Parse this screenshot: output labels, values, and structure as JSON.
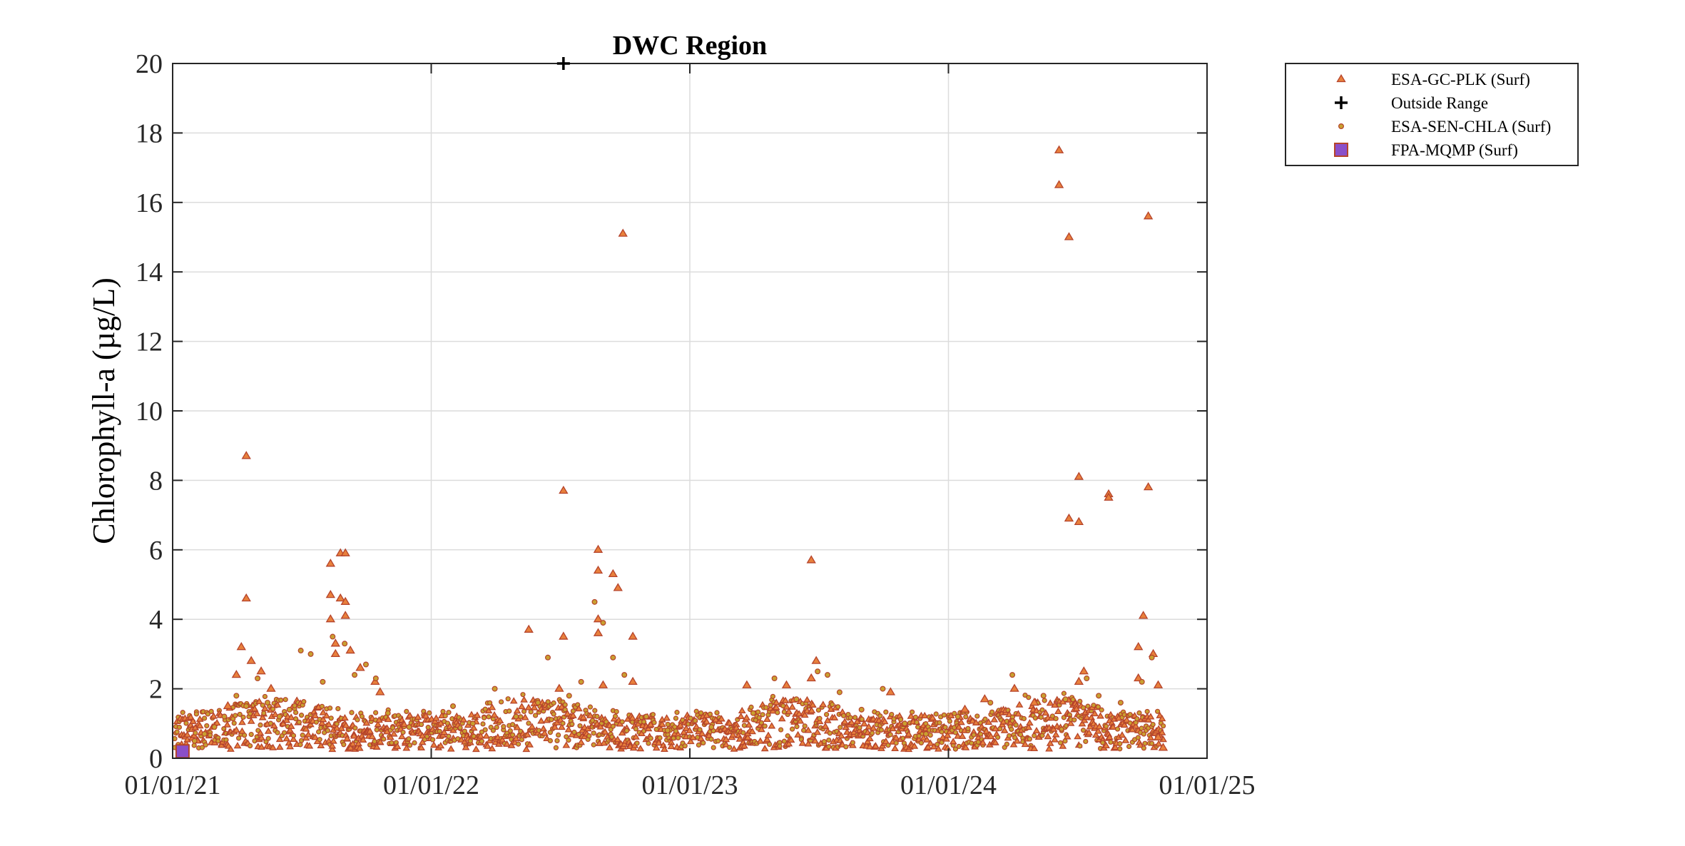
{
  "chart_data": {
    "type": "scatter",
    "title": "DWC Region",
    "xlabel": "",
    "ylabel": "Chlorophyll-a (µg/L)",
    "x_ticks": [
      "01/01/21",
      "01/01/22",
      "01/01/23",
      "01/01/24",
      "01/01/25"
    ],
    "xlim": [
      "2021-01-01",
      "2025-01-01"
    ],
    "ylim": [
      0,
      20
    ],
    "y_ticks": [
      0,
      2,
      4,
      6,
      8,
      10,
      12,
      14,
      16,
      18,
      20
    ],
    "grid": true,
    "legend_position": "outside-top-right",
    "colors": {
      "triangle_fill": "#e8803c",
      "triangle_edge": "#b5432b",
      "circle_fill": "#c9a030",
      "circle_edge": "#b5432b",
      "square_fill": "#8a4fc9",
      "square_edge": "#b5432b",
      "plus": "#000000"
    },
    "series": [
      {
        "name": "ESA-GC-PLK (Surf)",
        "marker": "triangle",
        "points": [
          [
            "2021-04-15",
            8.7
          ],
          [
            "2021-04-15",
            4.6
          ],
          [
            "2021-04-08",
            3.2
          ],
          [
            "2021-04-01",
            2.4
          ],
          [
            "2021-04-22",
            2.8
          ],
          [
            "2021-05-06",
            2.5
          ],
          [
            "2021-03-20",
            1.5
          ],
          [
            "2021-05-20",
            2.0
          ],
          [
            "2021-08-12",
            5.6
          ],
          [
            "2021-08-12",
            4.7
          ],
          [
            "2021-08-12",
            4.0
          ],
          [
            "2021-08-26",
            5.9
          ],
          [
            "2021-09-02",
            5.9
          ],
          [
            "2021-08-26",
            4.6
          ],
          [
            "2021-09-02",
            4.5
          ],
          [
            "2021-09-02",
            4.1
          ],
          [
            "2021-08-19",
            3.3
          ],
          [
            "2021-08-19",
            3.0
          ],
          [
            "2021-09-09",
            3.1
          ],
          [
            "2021-09-23",
            2.6
          ],
          [
            "2021-10-14",
            2.2
          ],
          [
            "2021-10-21",
            1.9
          ],
          [
            "2022-05-19",
            3.7
          ],
          [
            "2022-07-07",
            7.7
          ],
          [
            "2022-07-07",
            3.5
          ],
          [
            "2022-07-01",
            2.0
          ],
          [
            "2022-08-25",
            6.0
          ],
          [
            "2022-08-25",
            5.4
          ],
          [
            "2022-08-25",
            4.0
          ],
          [
            "2022-08-25",
            3.6
          ],
          [
            "2022-09-15",
            5.3
          ],
          [
            "2022-09-22",
            4.9
          ],
          [
            "2022-09-29",
            15.1
          ],
          [
            "2022-10-13",
            3.5
          ],
          [
            "2022-10-13",
            2.2
          ],
          [
            "2022-09-01",
            2.1
          ],
          [
            "2023-03-23",
            2.1
          ],
          [
            "2023-05-18",
            2.1
          ],
          [
            "2023-06-22",
            5.7
          ],
          [
            "2023-06-29",
            2.8
          ],
          [
            "2023-06-22",
            2.3
          ],
          [
            "2023-10-12",
            1.9
          ],
          [
            "2024-01-25",
            1.4
          ],
          [
            "2024-02-22",
            1.7
          ],
          [
            "2024-04-04",
            2.0
          ],
          [
            "2024-05-02",
            1.6
          ],
          [
            "2024-06-06",
            17.5
          ],
          [
            "2024-06-06",
            16.5
          ],
          [
            "2024-06-20",
            15.0
          ],
          [
            "2024-06-20",
            6.9
          ],
          [
            "2024-07-04",
            8.1
          ],
          [
            "2024-07-04",
            6.8
          ],
          [
            "2024-07-11",
            2.5
          ],
          [
            "2024-07-04",
            2.2
          ],
          [
            "2024-08-15",
            7.6
          ],
          [
            "2024-08-15",
            7.5
          ],
          [
            "2024-09-26",
            3.2
          ],
          [
            "2024-09-26",
            2.3
          ],
          [
            "2024-10-10",
            15.6
          ],
          [
            "2024-10-10",
            7.8
          ],
          [
            "2024-10-03",
            4.1
          ],
          [
            "2024-10-17",
            3.0
          ],
          [
            "2024-10-24",
            2.1
          ],
          [
            "2024-10-31",
            0.3
          ],
          [
            "2024-10-24",
            0.6
          ]
        ]
      },
      {
        "name": "Outside Range",
        "marker": "plus",
        "points": [
          [
            "2022-07-07",
            20
          ]
        ]
      },
      {
        "name": "ESA-SEN-CHLA (Surf)",
        "marker": "circle",
        "points": [
          [
            "2021-02-01",
            0.5
          ],
          [
            "2021-02-15",
            0.7
          ],
          [
            "2021-03-01",
            0.9
          ],
          [
            "2021-03-15",
            1.2
          ],
          [
            "2021-04-01",
            1.8
          ],
          [
            "2021-04-15",
            1.5
          ],
          [
            "2021-05-01",
            2.3
          ],
          [
            "2021-05-15",
            1.6
          ],
          [
            "2021-06-01",
            1.2
          ],
          [
            "2021-06-15",
            1.4
          ],
          [
            "2021-07-01",
            3.1
          ],
          [
            "2021-07-15",
            3.0
          ],
          [
            "2021-08-01",
            2.2
          ],
          [
            "2021-08-15",
            3.5
          ],
          [
            "2021-09-01",
            3.3
          ],
          [
            "2021-09-15",
            2.4
          ],
          [
            "2021-10-01",
            2.7
          ],
          [
            "2021-10-15",
            2.3
          ],
          [
            "2021-11-01",
            1.3
          ],
          [
            "2021-12-01",
            0.9
          ],
          [
            "2022-02-01",
            1.5
          ],
          [
            "2022-03-01",
            1.0
          ],
          [
            "2022-04-01",
            2.0
          ],
          [
            "2022-05-01",
            1.2
          ],
          [
            "2022-06-01",
            1.6
          ],
          [
            "2022-06-15",
            2.9
          ],
          [
            "2022-07-15",
            1.8
          ],
          [
            "2022-08-01",
            2.2
          ],
          [
            "2022-08-20",
            4.5
          ],
          [
            "2022-09-01",
            3.9
          ],
          [
            "2022-09-15",
            2.9
          ],
          [
            "2022-10-01",
            2.4
          ],
          [
            "2022-11-01",
            1.2
          ],
          [
            "2022-12-01",
            0.8
          ],
          [
            "2023-02-01",
            0.9
          ],
          [
            "2023-04-01",
            1.3
          ],
          [
            "2023-05-01",
            2.3
          ],
          [
            "2023-06-01",
            1.7
          ],
          [
            "2023-07-01",
            2.5
          ],
          [
            "2023-07-15",
            2.4
          ],
          [
            "2023-08-01",
            1.9
          ],
          [
            "2023-09-01",
            1.4
          ],
          [
            "2023-10-01",
            2.0
          ],
          [
            "2023-11-01",
            1.0
          ],
          [
            "2023-12-01",
            0.7
          ],
          [
            "2024-01-15",
            1.2
          ],
          [
            "2024-03-01",
            1.6
          ],
          [
            "2024-04-01",
            2.4
          ],
          [
            "2024-05-15",
            1.8
          ],
          [
            "2024-06-15",
            1.7
          ],
          [
            "2024-07-15",
            2.3
          ],
          [
            "2024-08-01",
            1.8
          ],
          [
            "2024-09-01",
            1.6
          ],
          [
            "2024-10-01",
            2.2
          ],
          [
            "2024-10-15",
            2.9
          ]
        ]
      },
      {
        "name": "FPA-MQMP (Surf)",
        "marker": "square",
        "points": [
          [
            "2021-01-15",
            0.2
          ]
        ]
      }
    ]
  }
}
